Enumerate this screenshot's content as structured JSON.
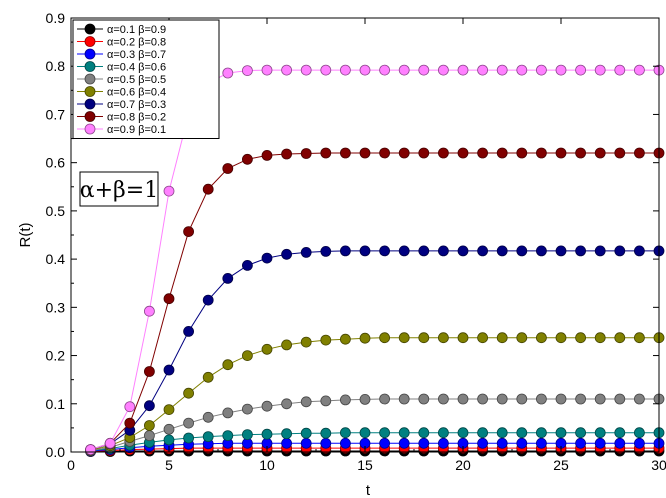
{
  "chart_data": {
    "type": "line",
    "xlabel": "t",
    "ylabel": "R(t)",
    "xlim": [
      0,
      30
    ],
    "ylim": [
      0,
      0.9
    ],
    "x_ticks": [
      "0",
      "5",
      "10",
      "15",
      "20",
      "25",
      "30"
    ],
    "y_ticks": [
      "0.0",
      "0.1",
      "0.2",
      "0.3",
      "0.4",
      "0.5",
      "0.6",
      "0.7",
      "0.8",
      "0.9"
    ],
    "grid": false,
    "legend_position": "top-left",
    "annotation": "α+β=1",
    "x": [
      1,
      2,
      3,
      4,
      5,
      6,
      7,
      8,
      9,
      10,
      11,
      12,
      13,
      14,
      15,
      16,
      17,
      18,
      19,
      20,
      21,
      22,
      23,
      24,
      25,
      26,
      27,
      28,
      29,
      30
    ],
    "series": [
      {
        "name": "α=0.1 β=0.9",
        "color": "#000000",
        "values": [
          0.001,
          0.001,
          0.002,
          0.002,
          0.002,
          0.002,
          0.002,
          0.002,
          0.002,
          0.002,
          0.002,
          0.002,
          0.002,
          0.002,
          0.002,
          0.002,
          0.002,
          0.002,
          0.002,
          0.002,
          0.002,
          0.002,
          0.002,
          0.002,
          0.002,
          0.002,
          0.002,
          0.002,
          0.002,
          0.002
        ]
      },
      {
        "name": "α=0.2 β=0.8",
        "color": "#ff0000",
        "values": [
          0.002,
          0.003,
          0.005,
          0.006,
          0.007,
          0.008,
          0.008,
          0.008,
          0.008,
          0.008,
          0.008,
          0.008,
          0.008,
          0.008,
          0.008,
          0.008,
          0.008,
          0.008,
          0.008,
          0.008,
          0.008,
          0.008,
          0.008,
          0.008,
          0.008,
          0.008,
          0.008,
          0.008,
          0.008,
          0.008
        ]
      },
      {
        "name": "α=0.3 β=0.7",
        "color": "#0000ff",
        "values": [
          0.002,
          0.005,
          0.009,
          0.012,
          0.014,
          0.016,
          0.017,
          0.018,
          0.018,
          0.018,
          0.018,
          0.018,
          0.018,
          0.018,
          0.018,
          0.018,
          0.018,
          0.018,
          0.018,
          0.018,
          0.018,
          0.018,
          0.018,
          0.018,
          0.018,
          0.018,
          0.018,
          0.018,
          0.018,
          0.018
        ]
      },
      {
        "name": "α=0.4 β=0.6",
        "color": "#008080",
        "values": [
          0.003,
          0.007,
          0.014,
          0.02,
          0.025,
          0.029,
          0.032,
          0.034,
          0.036,
          0.037,
          0.038,
          0.039,
          0.039,
          0.04,
          0.04,
          0.04,
          0.04,
          0.04,
          0.04,
          0.04,
          0.04,
          0.04,
          0.04,
          0.04,
          0.04,
          0.04,
          0.04,
          0.04,
          0.04,
          0.04
        ]
      },
      {
        "name": "α=0.5 β=0.5",
        "color": "#808080",
        "values": [
          0.003,
          0.01,
          0.022,
          0.034,
          0.047,
          0.06,
          0.072,
          0.081,
          0.089,
          0.095,
          0.1,
          0.104,
          0.106,
          0.108,
          0.109,
          0.11,
          0.11,
          0.11,
          0.11,
          0.11,
          0.11,
          0.11,
          0.11,
          0.11,
          0.11,
          0.11,
          0.11,
          0.11,
          0.11,
          0.11
        ]
      },
      {
        "name": "α=0.6 β=0.4",
        "color": "#808000",
        "values": [
          0.004,
          0.013,
          0.03,
          0.055,
          0.088,
          0.122,
          0.155,
          0.181,
          0.2,
          0.213,
          0.222,
          0.228,
          0.232,
          0.234,
          0.236,
          0.237,
          0.237,
          0.237,
          0.237,
          0.237,
          0.237,
          0.237,
          0.237,
          0.237,
          0.237,
          0.237,
          0.237,
          0.237,
          0.237,
          0.237
        ]
      },
      {
        "name": "α=0.7 β=0.3",
        "color": "#000080",
        "values": [
          0.005,
          0.017,
          0.045,
          0.096,
          0.17,
          0.25,
          0.315,
          0.36,
          0.387,
          0.402,
          0.41,
          0.414,
          0.416,
          0.417,
          0.417,
          0.417,
          0.417,
          0.417,
          0.417,
          0.417,
          0.417,
          0.417,
          0.417,
          0.417,
          0.417,
          0.417,
          0.417,
          0.417,
          0.417,
          0.417
        ]
      },
      {
        "name": "α=0.8 β=0.2",
        "color": "#800000",
        "values": [
          0.005,
          0.018,
          0.06,
          0.167,
          0.318,
          0.457,
          0.545,
          0.588,
          0.607,
          0.615,
          0.618,
          0.619,
          0.62,
          0.62,
          0.62,
          0.62,
          0.62,
          0.62,
          0.62,
          0.62,
          0.62,
          0.62,
          0.62,
          0.62,
          0.62,
          0.62,
          0.62,
          0.62,
          0.62,
          0.62
        ]
      },
      {
        "name": "α=0.9 β=0.1",
        "color": "#ff80ff",
        "values": [
          0.005,
          0.018,
          0.094,
          0.292,
          0.541,
          0.701,
          0.765,
          0.786,
          0.791,
          0.792,
          0.792,
          0.792,
          0.792,
          0.792,
          0.792,
          0.792,
          0.792,
          0.792,
          0.792,
          0.792,
          0.792,
          0.792,
          0.792,
          0.792,
          0.792,
          0.792,
          0.792,
          0.792,
          0.792,
          0.792
        ]
      }
    ]
  }
}
